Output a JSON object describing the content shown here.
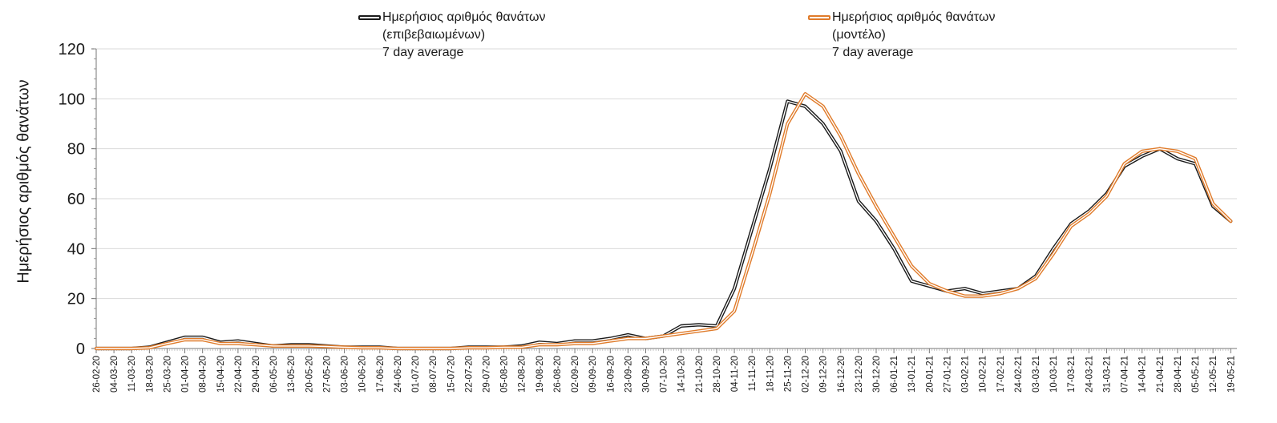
{
  "chart_data": {
    "type": "line",
    "ylabel": "Ημερήσιος αριθμός θανάτων",
    "xlabel": "",
    "ylim": [
      0,
      120
    ],
    "yticks": [
      0,
      20,
      40,
      60,
      80,
      100,
      120
    ],
    "grid": true,
    "legend_position": "top",
    "categories": [
      "26-02-20",
      "04-03-20",
      "11-03-20",
      "18-03-20",
      "25-03-20",
      "01-04-20",
      "08-04-20",
      "15-04-20",
      "22-04-20",
      "29-04-20",
      "06-05-20",
      "13-05-20",
      "20-05-20",
      "27-05-20",
      "03-06-20",
      "10-06-20",
      "17-06-20",
      "24-06-20",
      "01-07-20",
      "08-07-20",
      "15-07-20",
      "22-07-20",
      "29-07-20",
      "05-08-20",
      "12-08-20",
      "19-08-20",
      "26-08-20",
      "02-09-20",
      "09-09-20",
      "16-09-20",
      "23-09-20",
      "30-09-20",
      "07-10-20",
      "14-10-20",
      "21-10-20",
      "28-10-20",
      "04-11-20",
      "11-11-20",
      "18-11-20",
      "25-11-20",
      "02-12-20",
      "09-12-20",
      "16-12-20",
      "23-12-20",
      "30-12-20",
      "06-01-21",
      "13-01-21",
      "20-01-21",
      "27-01-21",
      "03-02-21",
      "10-02-21",
      "17-02-21",
      "24-02-21",
      "03-03-21",
      "10-03-21",
      "17-03-21",
      "24-03-21",
      "31-03-21",
      "07-04-21",
      "14-04-21",
      "21-04-21",
      "28-04-21",
      "05-05-21",
      "12-05-21",
      "19-05-21"
    ],
    "series": [
      {
        "name_lines": [
          "Ημερήσιος αριθμός θανάτων",
          "(επιβεβαιωμένων)",
          "7 day average"
        ],
        "color": "#1a1a1a",
        "values": [
          0,
          0,
          0,
          0.5,
          2.5,
          4.5,
          4.5,
          2.5,
          3,
          2,
          1,
          1.5,
          1.5,
          1,
          0.5,
          0.5,
          0.5,
          0,
          0,
          0,
          0,
          0.5,
          0.5,
          0.5,
          1,
          2.5,
          2,
          3,
          3,
          4,
          5.5,
          4,
          5,
          9,
          9.5,
          9,
          24,
          48,
          72,
          99,
          97,
          90,
          79,
          59,
          51,
          40,
          27,
          25,
          23,
          24,
          22,
          23,
          24,
          29,
          40,
          50,
          55,
          62,
          73,
          77,
          80,
          76,
          74,
          57,
          51
        ]
      },
      {
        "name_lines": [
          "Ημερήσιος αριθμός θανάτων",
          "(μοντέλο)",
          "7 day average"
        ],
        "color": "#e07b2a",
        "values": [
          0,
          0,
          0,
          0.3,
          2,
          3.5,
          3.5,
          2,
          2,
          1.5,
          1,
          1,
          1,
          0.8,
          0.5,
          0.3,
          0.3,
          0,
          0,
          0,
          0,
          0.3,
          0.3,
          0.5,
          0.5,
          1.5,
          1.5,
          2,
          2,
          3,
          4,
          4,
          5,
          6,
          7,
          8,
          15,
          38,
          62,
          90,
          102,
          97,
          85,
          70,
          57,
          45,
          33,
          26,
          23,
          21,
          21,
          22,
          24,
          28,
          38,
          49,
          54,
          61,
          74,
          79,
          80,
          79,
          76,
          58,
          51
        ]
      }
    ]
  }
}
